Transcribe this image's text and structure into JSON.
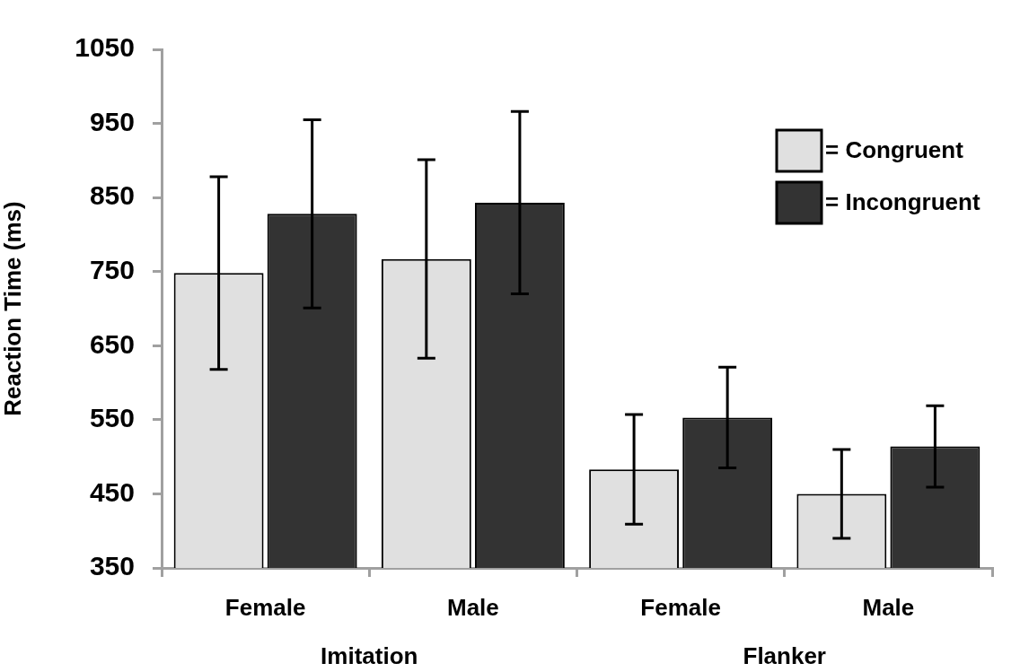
{
  "chart_data": {
    "type": "bar",
    "ylabel": "Reaction Time (ms)",
    "categories": [
      "Female",
      "Male",
      "Female",
      "Male"
    ],
    "series": [
      {
        "name": "= Congruent",
        "color": "#e0e0e0",
        "values": [
          748,
          767,
          483,
          450
        ],
        "errors": [
          130,
          134,
          74,
          60
        ]
      },
      {
        "name": "= Incongruent",
        "color": "#333333",
        "values": [
          828,
          843,
          553,
          514
        ],
        "errors": [
          127,
          123,
          68,
          55
        ]
      }
    ],
    "ylim": [
      350,
      1050
    ],
    "yticks": [
      350,
      450,
      550,
      650,
      750,
      850,
      950,
      1050
    ],
    "grid": false,
    "legend": "top right",
    "annotations": [
      "Imitation",
      "Flanker"
    ]
  }
}
